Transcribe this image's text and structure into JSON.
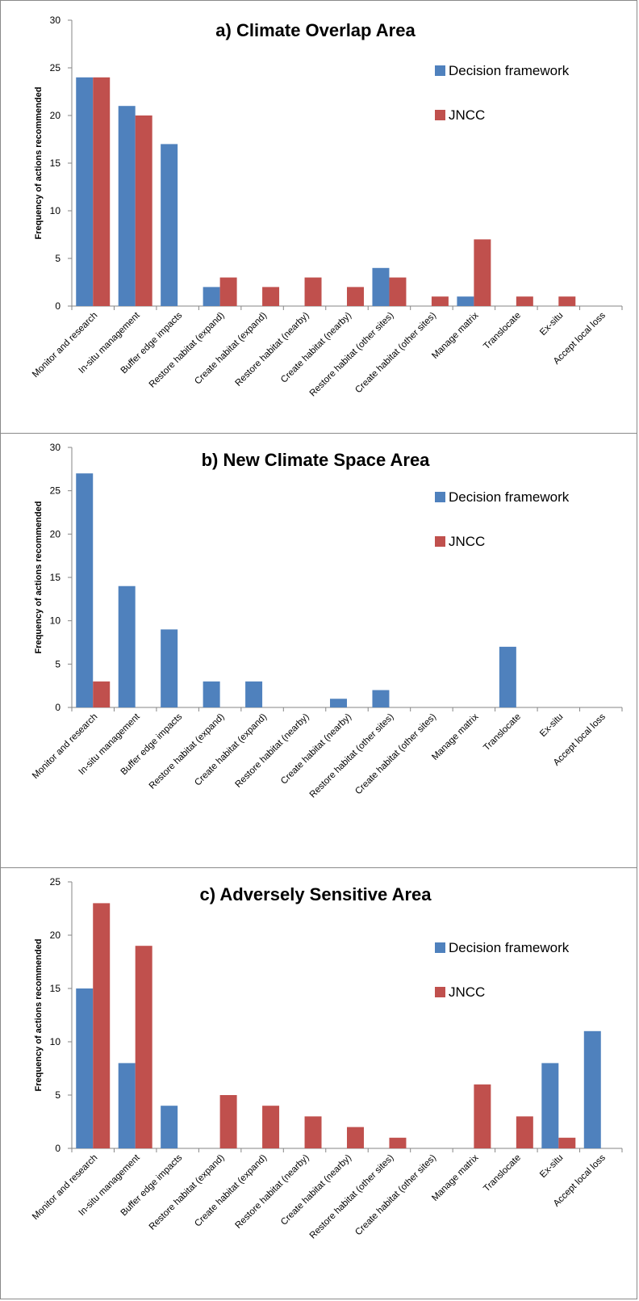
{
  "colors": {
    "decision": "#4f81bd",
    "jncc": "#c0504d",
    "axis": "#868686"
  },
  "chart_data": [
    {
      "type": "bar",
      "title": "a) Climate Overlap Area",
      "ylabel": "Frequency of actions recommended",
      "ylim": [
        0,
        30
      ],
      "yticks": [
        0,
        5,
        10,
        15,
        20,
        25,
        30
      ],
      "legend_position": "top-right",
      "categories": [
        "Monitor and research",
        "In-situ management",
        "Buffer edge impacts",
        "Restore habitat (expand)",
        "Create habitat (expand)",
        "Restore habitat (nearby)",
        "Create habitat (nearby)",
        "Restore habitat (other sites)",
        "Create habitat (other sites)",
        "Manage matrix",
        "Translocate",
        "Ex-situ",
        "Accept local loss"
      ],
      "series": [
        {
          "name": "Decision framework",
          "values": [
            24,
            21,
            17,
            2,
            0,
            0,
            0,
            4,
            0,
            1,
            0,
            0,
            0
          ]
        },
        {
          "name": "JNCC",
          "values": [
            24,
            20,
            0,
            3,
            2,
            3,
            2,
            3,
            1,
            7,
            1,
            1,
            0
          ]
        }
      ]
    },
    {
      "type": "bar",
      "title": "b) New Climate Space Area",
      "ylabel": "Frequency of actions recommended",
      "ylim": [
        0,
        30
      ],
      "yticks": [
        0,
        5,
        10,
        15,
        20,
        25,
        30
      ],
      "legend_position": "top-right",
      "categories": [
        "Monitor and research",
        "In-situ management",
        "Buffer edge impacts",
        "Restore habitat (expand)",
        "Create habitat (expand)",
        "Restore habitat (nearby)",
        "Create habitat (nearby)",
        "Restore habitat (other sites)",
        "Create habitat (other sites)",
        "Manage matrix",
        "Translocate",
        "Ex-situ",
        "Accept local loss"
      ],
      "series": [
        {
          "name": "Decision framework",
          "values": [
            27,
            14,
            9,
            3,
            3,
            0,
            1,
            2,
            0,
            0,
            7,
            0,
            0
          ]
        },
        {
          "name": "JNCC",
          "values": [
            3,
            0,
            0,
            0,
            0,
            0,
            0,
            0,
            0,
            0,
            0,
            0,
            0
          ]
        }
      ]
    },
    {
      "type": "bar",
      "title": "c) Adversely Sensitive Area",
      "ylabel": "Frequency of actions recommended",
      "ylim": [
        0,
        25
      ],
      "yticks": [
        0,
        5,
        10,
        15,
        20,
        25
      ],
      "legend_position": "top-right",
      "categories": [
        "Monitor and research",
        "In-situ management",
        "Buffer edge impacts",
        "Restore habitat (expand)",
        "Create habitat (expand)",
        "Restore habitat (nearby)",
        "Create habitat (nearby)",
        "Restore habitat (other sites)",
        "Create habitat (other sites)",
        "Manage matrix",
        "Translocate",
        "Ex-situ",
        "Accept local loss"
      ],
      "series": [
        {
          "name": "Decision framework",
          "values": [
            15,
            8,
            4,
            0,
            0,
            0,
            0,
            0,
            0,
            0,
            0,
            8,
            11
          ]
        },
        {
          "name": "JNCC",
          "values": [
            23,
            19,
            0,
            5,
            4,
            3,
            2,
            1,
            0,
            6,
            3,
            1,
            0
          ]
        }
      ]
    }
  ]
}
